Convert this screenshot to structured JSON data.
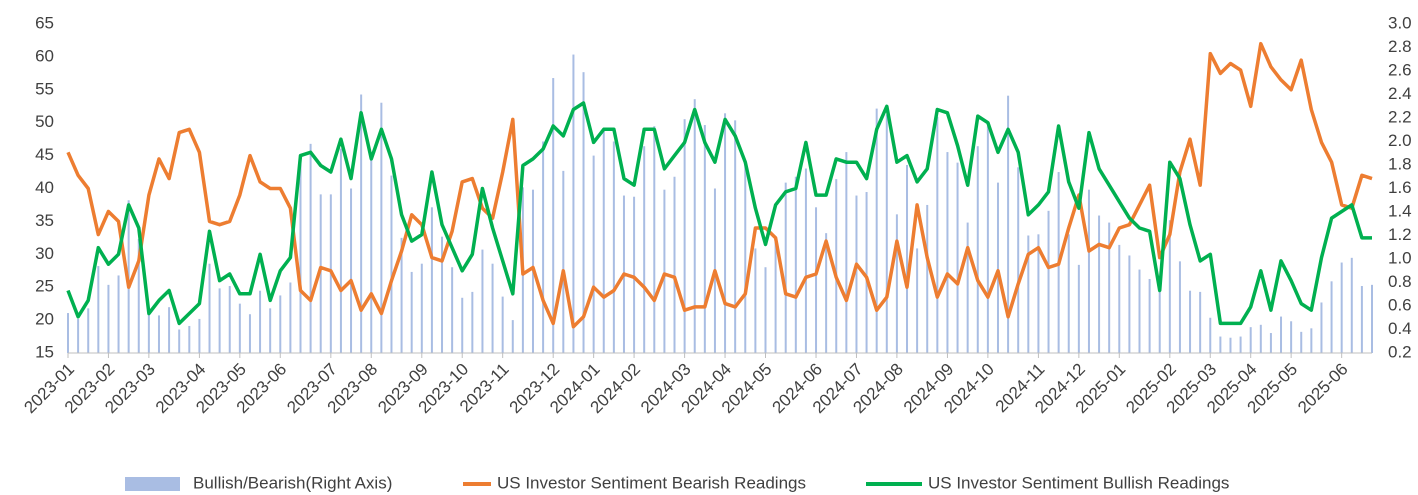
{
  "chart_data": {
    "type": "line",
    "categories": [
      "2023-01",
      null,
      null,
      null,
      "2023-02",
      null,
      null,
      null,
      "2023-03",
      null,
      null,
      null,
      null,
      "2023-04",
      null,
      null,
      null,
      "2023-05",
      null,
      null,
      null,
      "2023-06",
      null,
      null,
      null,
      null,
      "2023-07",
      null,
      null,
      null,
      "2023-08",
      null,
      null,
      null,
      null,
      "2023-09",
      null,
      null,
      null,
      "2023-10",
      null,
      null,
      null,
      "2023-11",
      null,
      null,
      null,
      null,
      "2023-12",
      null,
      null,
      null,
      "2024-01",
      null,
      null,
      null,
      "2024-02",
      null,
      null,
      null,
      null,
      "2024-03",
      null,
      null,
      null,
      "2024-04",
      null,
      null,
      null,
      "2024-05",
      null,
      null,
      null,
      null,
      "2024-06",
      null,
      null,
      null,
      "2024-07",
      null,
      null,
      null,
      "2024-08",
      null,
      null,
      null,
      null,
      "2024-09",
      null,
      null,
      null,
      "2024-10",
      null,
      null,
      null,
      null,
      "2024-11",
      null,
      null,
      null,
      "2024-12",
      null,
      null,
      null,
      "2025-01",
      null,
      null,
      null,
      null,
      "2025-02",
      null,
      null,
      null,
      "2025-03",
      null,
      null,
      null,
      "2025-04",
      null,
      null,
      null,
      "2025-05",
      null,
      null,
      null,
      null,
      "2025-06",
      null,
      null,
      null
    ],
    "series": [
      {
        "name": "Bullish/Bearish(Right Axis)",
        "type": "bar",
        "axis": "y2",
        "color": "#a9bde3",
        "values": [
          0.54,
          0.49,
          0.58,
          0.94,
          0.78,
          0.86,
          1.5,
          1.17,
          0.54,
          0.52,
          0.59,
          0.4,
          0.43,
          0.49,
          0.96,
          0.75,
          0.77,
          0.62,
          0.53,
          0.73,
          0.58,
          0.69,
          0.8,
          1.84,
          1.98,
          1.55,
          1.55,
          1.94,
          1.6,
          2.4,
          1.85,
          2.33,
          1.71,
          1.18,
          0.89,
          0.96,
          1.44,
          1.19,
          0.93,
          0.67,
          0.72,
          1.08,
          0.96,
          0.68,
          0.48,
          1.61,
          1.59,
          2.0,
          2.54,
          1.75,
          2.74,
          2.59,
          1.88,
          2.09,
          2.0,
          1.54,
          1.53,
          1.96,
          2.13,
          1.59,
          1.7,
          2.19,
          2.36,
          2.14,
          1.6,
          2.24,
          2.18,
          1.83,
          1.09,
          0.93,
          1.15,
          1.65,
          1.7,
          1.77,
          1.44,
          1.22,
          1.68,
          1.91,
          1.54,
          1.57,
          2.28,
          2.23,
          1.38,
          1.8,
          1.09,
          1.46,
          2.21,
          1.91,
          1.82,
          1.31,
          1.96,
          2.13,
          1.65,
          2.39,
          1.78,
          1.2,
          1.21,
          1.41,
          1.74,
          1.21,
          0.95,
          1.59,
          1.37,
          1.31,
          1.12,
          1.03,
          0.91,
          0.83,
          0.83,
          1.33,
          0.98,
          0.73,
          0.72,
          0.5,
          0.34,
          0.33,
          0.34,
          0.42,
          0.44,
          0.37,
          0.51,
          0.47,
          0.38,
          0.41,
          0.63,
          0.81,
          0.97,
          1.01,
          0.77,
          0.78
        ]
      },
      {
        "name": "US Investor Sentiment Bearish Readings",
        "type": "line",
        "color": "#ed7d31",
        "values": [
          45.5,
          42,
          40,
          33,
          36.5,
          35,
          25,
          29,
          39,
          44.5,
          41.5,
          48.5,
          49,
          45.5,
          35,
          34.5,
          35,
          39,
          45,
          41,
          40,
          40,
          37,
          24.5,
          23,
          28,
          27.5,
          24.5,
          26,
          21.5,
          24,
          21,
          26,
          30.5,
          36,
          34.5,
          29.5,
          29,
          33.5,
          41,
          41.5,
          37,
          35.5,
          42.5,
          50.5,
          27,
          28,
          23,
          19.5,
          27.5,
          19,
          20.5,
          25,
          23.5,
          24.5,
          27,
          26.5,
          25,
          23,
          27,
          26.5,
          21.5,
          22,
          22,
          27.5,
          22.5,
          22,
          24,
          34,
          34,
          32.5,
          24,
          23.5,
          26.5,
          27,
          32,
          26.5,
          23,
          28.5,
          26.5,
          21.5,
          23.5,
          32,
          25,
          37.5,
          29.5,
          23.5,
          27,
          25.5,
          31,
          26,
          23.5,
          27.5,
          20.5,
          25.5,
          30,
          31,
          28,
          28.5,
          34,
          39,
          30.5,
          31.5,
          31,
          34,
          34.5,
          37.5,
          40.5,
          29.5,
          33,
          42.5,
          47.5,
          40.5,
          60.5,
          57.5,
          59,
          58,
          52.5,
          62,
          58.5,
          56.5,
          55,
          59.5,
          52,
          47,
          44,
          37.5,
          37,
          42,
          41.5
        ]
      },
      {
        "name": "US Investor Sentiment Bullish Readings",
        "type": "line",
        "color": "#00b050",
        "values": [
          24.5,
          20.5,
          23,
          31,
          28.5,
          30,
          37.5,
          34,
          21,
          23,
          24.5,
          19.5,
          21,
          22.5,
          33.5,
          26,
          27,
          24,
          24,
          30,
          23,
          27.5,
          29.5,
          45,
          45.5,
          43.5,
          42.5,
          47.5,
          41.5,
          51.5,
          44.5,
          49,
          44.5,
          36,
          32,
          33,
          42.5,
          34.5,
          31,
          27.5,
          30,
          40,
          34,
          29,
          24,
          43.5,
          44.5,
          46,
          49.5,
          48,
          52,
          53,
          47,
          49,
          49,
          41.5,
          40.5,
          49,
          49,
          43,
          45,
          47,
          52,
          47,
          44,
          50.5,
          48,
          44,
          37,
          31.5,
          37.5,
          39.5,
          40,
          47,
          39,
          39,
          44.5,
          44,
          44,
          41.5,
          49,
          52.5,
          44,
          45,
          41,
          43,
          52,
          51.5,
          46.5,
          40.5,
          51,
          50,
          45.5,
          49,
          45.5,
          36,
          37.5,
          39.5,
          49.5,
          41,
          37,
          48.5,
          43,
          40.5,
          38,
          35.5,
          34,
          33.5,
          24.5,
          44,
          41.5,
          34.5,
          29,
          30,
          19.5,
          19.5,
          19.5,
          22,
          27.5,
          21.5,
          29,
          26,
          22.5,
          21.5,
          29.5,
          35.5,
          36.5,
          37.5,
          32.5,
          32.5
        ]
      }
    ],
    "ylim": [
      15,
      65
    ],
    "yticks": [
      15,
      20,
      25,
      30,
      35,
      40,
      45,
      50,
      55,
      60,
      65
    ],
    "y2lim": [
      0.2,
      3.0
    ],
    "y2ticks": [
      0.2,
      0.4,
      0.6,
      0.8,
      {
        "value": 1.0,
        "label": "1.0"
      },
      1.2,
      1.4,
      1.6,
      1.8,
      {
        "value": 2.0,
        "label": "2.0"
      },
      2.2,
      2.4,
      2.6,
      2.8,
      {
        "value": 3.0,
        "label": "3.0"
      }
    ],
    "grid": false,
    "legend": "bottom"
  }
}
